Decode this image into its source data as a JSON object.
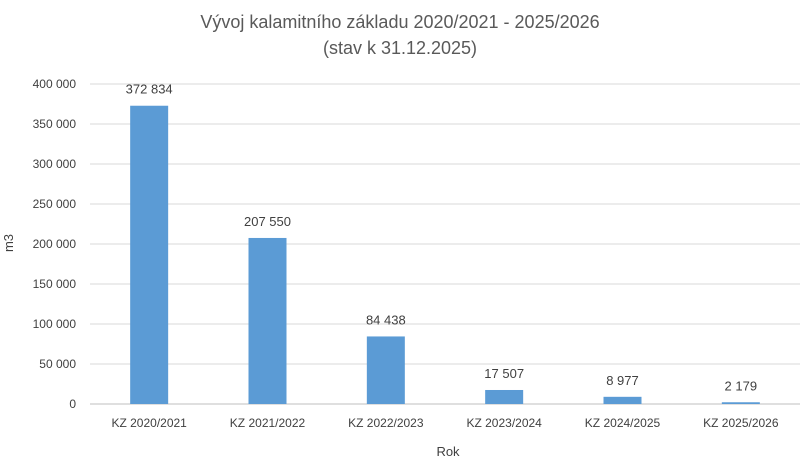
{
  "chart_data": {
    "type": "bar",
    "title": [
      "Vývoj kalamitního základu 2020/2021 - 2025/2026",
      "(stav k 31.12.2025)"
    ],
    "xlabel": "Rok",
    "ylabel": "m3",
    "ylim": [
      0,
      400000
    ],
    "yticks": [
      0,
      50000,
      100000,
      150000,
      200000,
      250000,
      300000,
      350000,
      400000
    ],
    "ytick_labels": [
      "0",
      "50 000",
      "100 000",
      "150 000",
      "200 000",
      "250 000",
      "300 000",
      "350 000",
      "400 000"
    ],
    "grid": true,
    "legend": "none",
    "bar_color": "#5b9bd5",
    "categories": [
      "KZ 2020/2021",
      "KZ 2021/2022",
      "KZ 2022/2023",
      "KZ 2023/2024",
      "KZ 2024/2025",
      "KZ 2025/2026"
    ],
    "values": [
      372834,
      207550,
      84438,
      17507,
      8977,
      2179
    ],
    "data_labels": [
      "372 834",
      "207 550",
      "84 438",
      "17 507",
      "8 977",
      "2 179"
    ]
  }
}
